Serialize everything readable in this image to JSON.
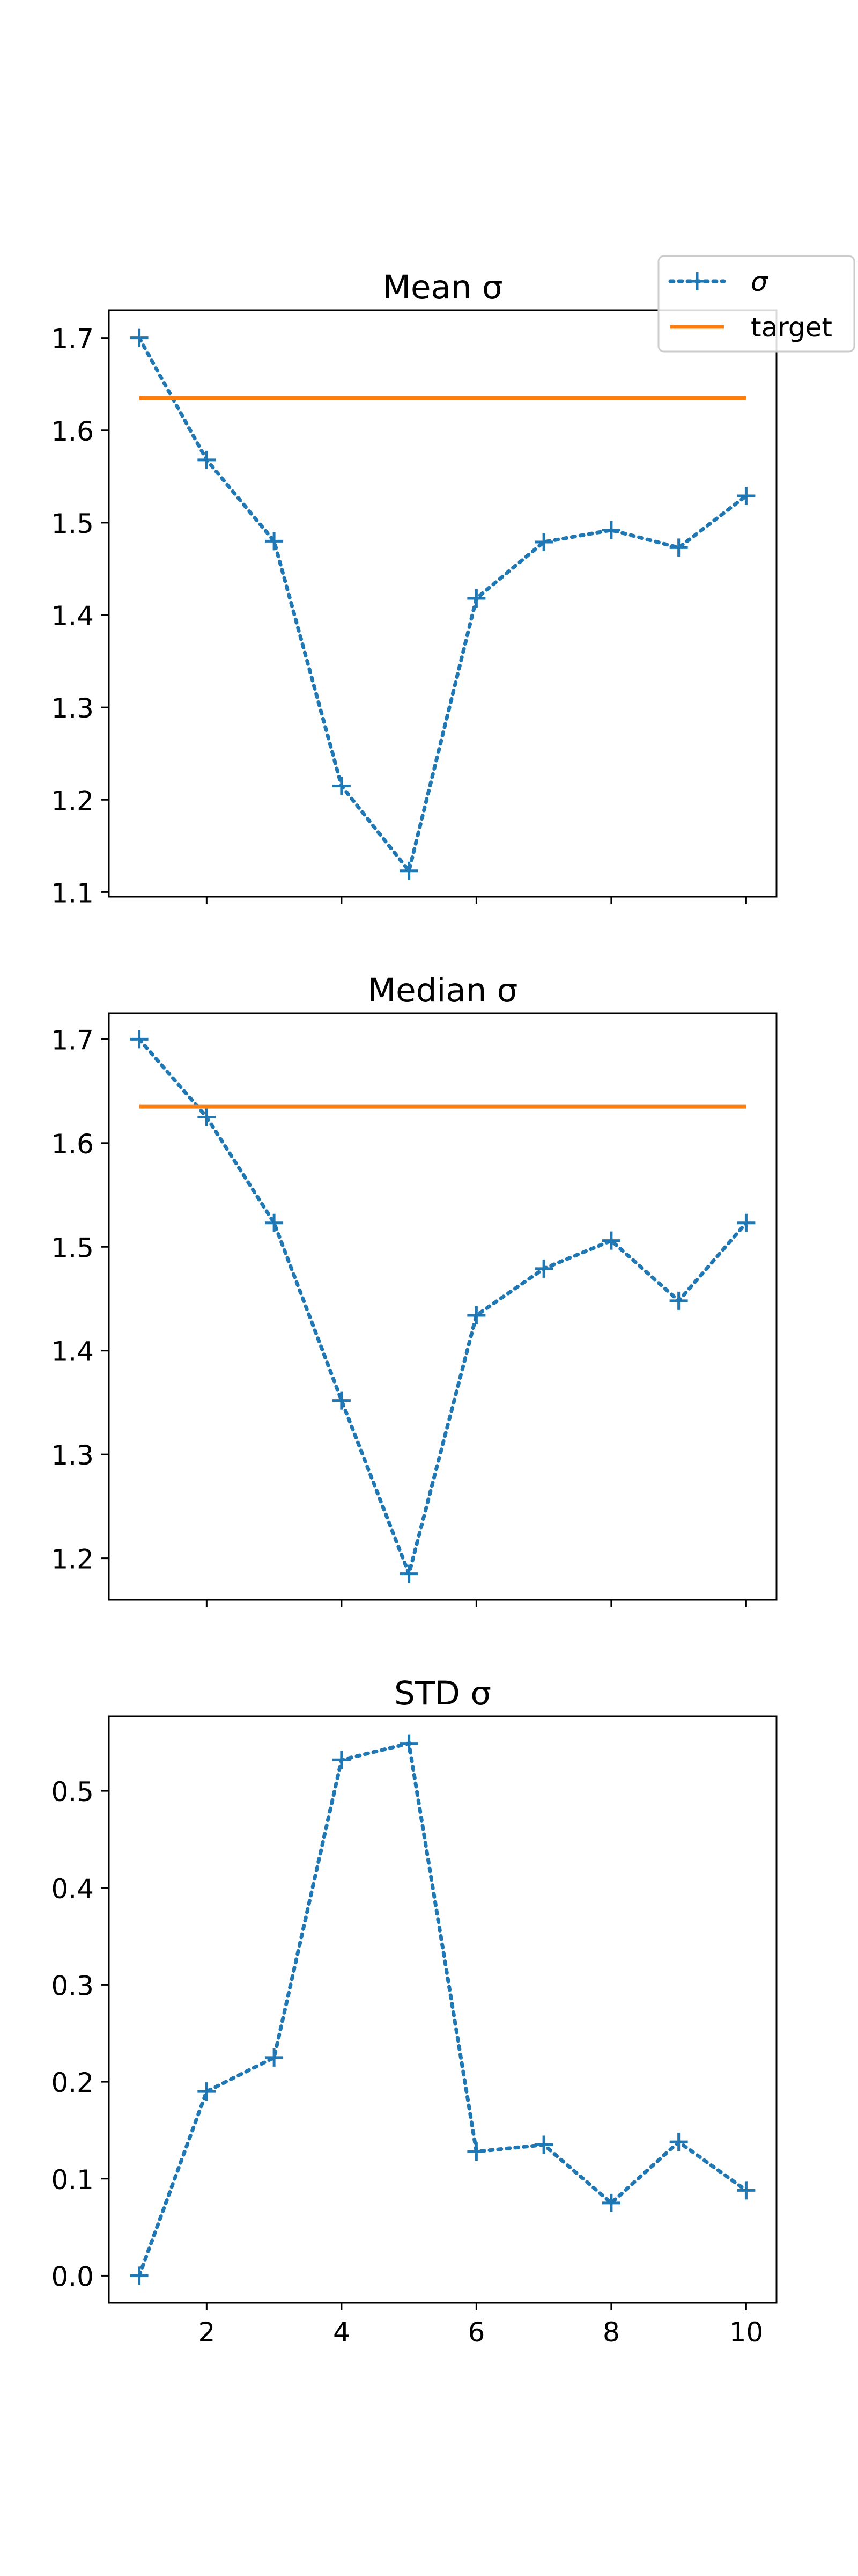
{
  "colors": {
    "sigma_series": "#1f77b4",
    "target_line": "#ff7f0e",
    "axes": "#000000",
    "background": "#ffffff"
  },
  "legend": {
    "placement": "top-right",
    "entries": [
      {
        "label": "σ",
        "style": "dotted-plus-marker",
        "color": "#1f77b4"
      },
      {
        "label": "target",
        "style": "solid-line",
        "color": "#ff7f0e"
      }
    ]
  },
  "chart_data": [
    {
      "type": "line",
      "title": "Mean σ",
      "xlabel": "",
      "ylabel": "",
      "ylim": [
        1.095,
        1.73
      ],
      "yticks": [
        1.1,
        1.2,
        1.3,
        1.4,
        1.5,
        1.6,
        1.7
      ],
      "xlim": [
        0.55,
        10.45
      ],
      "xticks": [
        2,
        4,
        6,
        8,
        10
      ],
      "show_xtick_labels": false,
      "grid": false,
      "series": [
        {
          "name": "σ",
          "line": "dotted",
          "marker": "+",
          "color": "#1f77b4",
          "x": [
            1,
            2,
            3,
            4,
            5,
            6,
            7,
            8,
            9,
            10
          ],
          "y": [
            1.7,
            1.568,
            1.48,
            1.215,
            1.123,
            1.418,
            1.479,
            1.492,
            1.473,
            1.529
          ]
        },
        {
          "name": "target",
          "line": "solid",
          "marker": "",
          "color": "#ff7f0e",
          "x": [
            1,
            10
          ],
          "y": [
            1.635,
            1.635
          ]
        }
      ]
    },
    {
      "type": "line",
      "title": "Median σ",
      "xlabel": "",
      "ylabel": "",
      "ylim": [
        1.16,
        1.725
      ],
      "yticks": [
        1.2,
        1.3,
        1.4,
        1.5,
        1.6,
        1.7
      ],
      "xlim": [
        0.55,
        10.45
      ],
      "xticks": [
        2,
        4,
        6,
        8,
        10
      ],
      "show_xtick_labels": false,
      "grid": false,
      "series": [
        {
          "name": "σ",
          "line": "dotted",
          "marker": "+",
          "color": "#1f77b4",
          "x": [
            1,
            2,
            3,
            4,
            5,
            6,
            7,
            8,
            9,
            10
          ],
          "y": [
            1.7,
            1.625,
            1.523,
            1.352,
            1.185,
            1.434,
            1.479,
            1.506,
            1.448,
            1.523
          ]
        },
        {
          "name": "target",
          "line": "solid",
          "marker": "",
          "color": "#ff7f0e",
          "x": [
            1,
            10
          ],
          "y": [
            1.635,
            1.635
          ]
        }
      ]
    },
    {
      "type": "line",
      "title": "STD σ",
      "xlabel": "",
      "ylabel": "",
      "ylim": [
        -0.028,
        0.577
      ],
      "yticks": [
        0.0,
        0.1,
        0.2,
        0.3,
        0.4,
        0.5
      ],
      "xlim": [
        0.55,
        10.45
      ],
      "xticks": [
        2,
        4,
        6,
        8,
        10
      ],
      "show_xtick_labels": true,
      "grid": false,
      "series": [
        {
          "name": "σ",
          "line": "dotted",
          "marker": "+",
          "color": "#1f77b4",
          "x": [
            1,
            2,
            3,
            4,
            5,
            6,
            7,
            8,
            9,
            10
          ],
          "y": [
            0.0,
            0.19,
            0.225,
            0.532,
            0.549,
            0.128,
            0.135,
            0.075,
            0.138,
            0.088
          ]
        }
      ]
    }
  ]
}
